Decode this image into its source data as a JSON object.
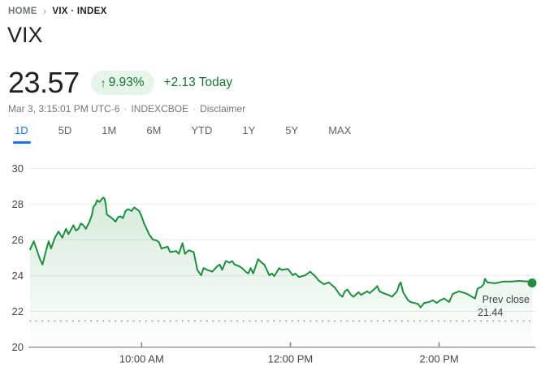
{
  "breadcrumb": {
    "home": "HOME",
    "separator": "›",
    "current": "VIX · INDEX"
  },
  "title": "VIX",
  "quote": {
    "price": "23.57",
    "arrow": "↑",
    "change_percent": "9.93%",
    "change_absolute": "+2.13 Today",
    "timestamp": "Mar 3, 3:15:01 PM UTC-6",
    "separator": "·",
    "exchange": "INDEXCBOE",
    "disclaimer": "Disclaimer"
  },
  "tabs": [
    {
      "label": "1D",
      "active": true
    },
    {
      "label": "5D",
      "active": false
    },
    {
      "label": "1M",
      "active": false
    },
    {
      "label": "6M",
      "active": false
    },
    {
      "label": "YTD",
      "active": false
    },
    {
      "label": "1Y",
      "active": false
    },
    {
      "label": "5Y",
      "active": false
    },
    {
      "label": "MAX",
      "active": false
    }
  ],
  "colors": {
    "green_text": "#137333",
    "green_line": "#1e8e3e",
    "badge_bg": "#e6f4ea",
    "blue_accent": "#1a73e8",
    "grid": "#e8eaed",
    "axis": "#80868b",
    "tick_label": "#444746",
    "prev_close_dots": "#9aa0a6",
    "annotation_text": "#3c4043"
  },
  "chart_data": {
    "type": "area",
    "title": "VIX intraday (1D)",
    "x_unit": "minutes since 8:30 AM UTC-6",
    "session": {
      "start": "8:30 AM",
      "end": "3:15 PM",
      "total_minutes": 405
    },
    "ylim": [
      20,
      30
    ],
    "y_ticks": [
      30,
      28,
      26,
      24,
      22,
      20
    ],
    "x_ticks": [
      {
        "label": "10:00 AM",
        "t": 90
      },
      {
        "label": "12:00 PM",
        "t": 210
      },
      {
        "label": "2:00 PM",
        "t": 330
      }
    ],
    "prev_close": {
      "label": "Prev close",
      "value_label": "21.44",
      "value": 21.44
    },
    "grid": true,
    "legend": false,
    "points": [
      [
        0,
        25.45
      ],
      [
        3,
        25.9
      ],
      [
        6,
        25.3
      ],
      [
        8,
        24.9
      ],
      [
        10,
        24.6
      ],
      [
        13,
        25.4
      ],
      [
        15,
        25.9
      ],
      [
        17,
        25.5
      ],
      [
        20,
        26.1
      ],
      [
        23,
        26.45
      ],
      [
        26,
        26.1
      ],
      [
        29,
        26.6
      ],
      [
        31,
        26.3
      ],
      [
        35,
        26.8
      ],
      [
        37,
        26.5
      ],
      [
        39,
        26.6
      ],
      [
        41,
        26.9
      ],
      [
        43,
        26.8
      ],
      [
        45,
        26.6
      ],
      [
        48,
        27.0
      ],
      [
        50,
        27.4
      ],
      [
        51,
        27.8
      ],
      [
        53,
        28.0
      ],
      [
        54,
        28.2
      ],
      [
        56,
        28.1
      ],
      [
        59,
        28.35
      ],
      [
        60,
        28.3
      ],
      [
        61,
        28.0
      ],
      [
        62,
        27.4
      ],
      [
        64,
        27.3
      ],
      [
        66,
        27.2
      ],
      [
        69,
        27.0
      ],
      [
        71,
        27.25
      ],
      [
        73,
        27.3
      ],
      [
        75,
        27.2
      ],
      [
        77,
        27.6
      ],
      [
        79,
        27.7
      ],
      [
        82,
        27.6
      ],
      [
        84,
        27.8
      ],
      [
        86,
        27.7
      ],
      [
        88,
        27.6
      ],
      [
        90,
        27.3
      ],
      [
        92,
        26.9
      ],
      [
        95,
        26.45
      ],
      [
        96,
        26.3
      ],
      [
        99,
        26.0
      ],
      [
        102,
        25.95
      ],
      [
        104,
        25.85
      ],
      [
        106,
        25.5
      ],
      [
        111,
        25.6
      ],
      [
        113,
        25.3
      ],
      [
        118,
        25.35
      ],
      [
        120,
        25.2
      ],
      [
        123,
        25.8
      ],
      [
        125,
        25.2
      ],
      [
        128,
        25.4
      ],
      [
        132,
        25.3
      ],
      [
        135,
        24.3
      ],
      [
        138,
        24.0
      ],
      [
        140,
        24.4
      ],
      [
        143,
        24.3
      ],
      [
        147,
        24.2
      ],
      [
        151,
        24.5
      ],
      [
        153,
        24.6
      ],
      [
        155,
        24.3
      ],
      [
        158,
        24.8
      ],
      [
        161,
        24.7
      ],
      [
        163,
        24.8
      ],
      [
        165,
        24.6
      ],
      [
        169,
        24.5
      ],
      [
        171,
        24.4
      ],
      [
        174,
        24.2
      ],
      [
        176,
        24.1
      ],
      [
        178,
        24.4
      ],
      [
        180,
        24.1
      ],
      [
        184,
        24.9
      ],
      [
        187,
        24.7
      ],
      [
        189,
        24.6
      ],
      [
        191,
        24.3
      ],
      [
        193,
        24.0
      ],
      [
        195,
        24.1
      ],
      [
        197,
        23.95
      ],
      [
        201,
        24.4
      ],
      [
        203,
        24.3
      ],
      [
        208,
        24.35
      ],
      [
        212,
        24.0
      ],
      [
        214,
        24.1
      ],
      [
        217,
        23.9
      ],
      [
        222,
        24.0
      ],
      [
        226,
        24.2
      ],
      [
        230,
        23.95
      ],
      [
        233,
        23.7
      ],
      [
        237,
        23.5
      ],
      [
        241,
        23.6
      ],
      [
        246,
        23.3
      ],
      [
        250,
        22.9
      ],
      [
        252,
        22.8
      ],
      [
        254,
        23.1
      ],
      [
        256,
        23.2
      ],
      [
        259,
        22.9
      ],
      [
        261,
        22.8
      ],
      [
        265,
        23.05
      ],
      [
        267,
        22.9
      ],
      [
        272,
        23.1
      ],
      [
        274,
        23.0
      ],
      [
        279,
        23.3
      ],
      [
        280,
        23.4
      ],
      [
        282,
        23.1
      ],
      [
        285,
        23.0
      ],
      [
        289,
        22.9
      ],
      [
        292,
        22.8
      ],
      [
        296,
        23.1
      ],
      [
        298,
        23.5
      ],
      [
        299,
        23.6
      ],
      [
        301,
        23.05
      ],
      [
        305,
        22.6
      ],
      [
        307,
        22.5
      ],
      [
        313,
        22.4
      ],
      [
        315,
        22.2
      ],
      [
        318,
        22.45
      ],
      [
        322,
        22.5
      ],
      [
        325,
        22.6
      ],
      [
        328,
        22.45
      ],
      [
        331,
        22.6
      ],
      [
        334,
        22.7
      ],
      [
        338,
        22.5
      ],
      [
        341,
        22.95
      ],
      [
        346,
        23.1
      ],
      [
        351,
        23.0
      ],
      [
        354,
        22.9
      ],
      [
        359,
        22.7
      ],
      [
        361,
        23.25
      ],
      [
        364,
        23.35
      ],
      [
        366,
        23.5
      ],
      [
        367,
        23.8
      ],
      [
        369,
        23.6
      ],
      [
        375,
        23.55
      ],
      [
        382,
        23.65
      ],
      [
        388,
        23.65
      ],
      [
        395,
        23.68
      ],
      [
        402,
        23.65
      ],
      [
        405,
        23.57
      ]
    ]
  }
}
